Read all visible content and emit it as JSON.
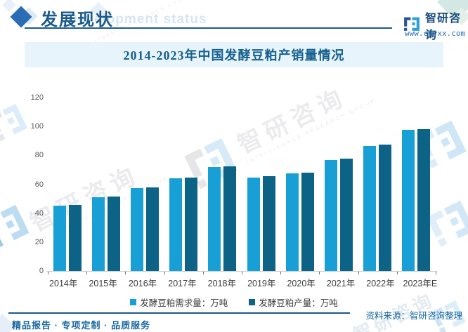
{
  "header": {
    "title": "发展现状",
    "watermark_en": "Development status",
    "brand": {
      "name": "智研咨询",
      "url": "www.chyxx.com"
    }
  },
  "chart": {
    "title": "2014-2023年中国发酵豆粕产销量情况"
  },
  "chart_data": {
    "type": "bar",
    "categories": [
      "2014年",
      "2015年",
      "2016年",
      "2017年",
      "2018年",
      "2019年",
      "2020年",
      "2021年",
      "2022年",
      "2023年E"
    ],
    "series": [
      {
        "name": "发酵豆粕需求量：万吨",
        "color": "#18a0d6",
        "values": [
          45,
          51,
          57.5,
          64,
          72,
          64.5,
          67.5,
          77,
          86.5,
          97.5
        ]
      },
      {
        "name": "发酵豆粕产量：万吨",
        "color": "#0d6385",
        "values": [
          45.5,
          51.5,
          58,
          64.5,
          72.5,
          65.5,
          68,
          77.5,
          87.5,
          98
        ]
      }
    ],
    "ylim": [
      0,
      120
    ],
    "ytick_step": 20,
    "grid": false,
    "legend_position": "bottom",
    "title": "2014-2023年中国发酵豆粕产销量情况",
    "xlabel": "",
    "ylabel": ""
  },
  "footer": {
    "tagline": "精品报告 · 专项定制 · 品质服务",
    "source": "资料来源：智研咨询整理"
  },
  "watermark": {
    "cn": "智研咨询",
    "en": "INTELLIGENCE RESEARCH GROUP"
  },
  "colors": {
    "accent_dark_blue": "#1b5a8c",
    "bar_light": "#18a0d6",
    "bar_dark": "#0d6385",
    "title_band_bg": "#e8f4fb",
    "footer_text": "#1565a0"
  }
}
